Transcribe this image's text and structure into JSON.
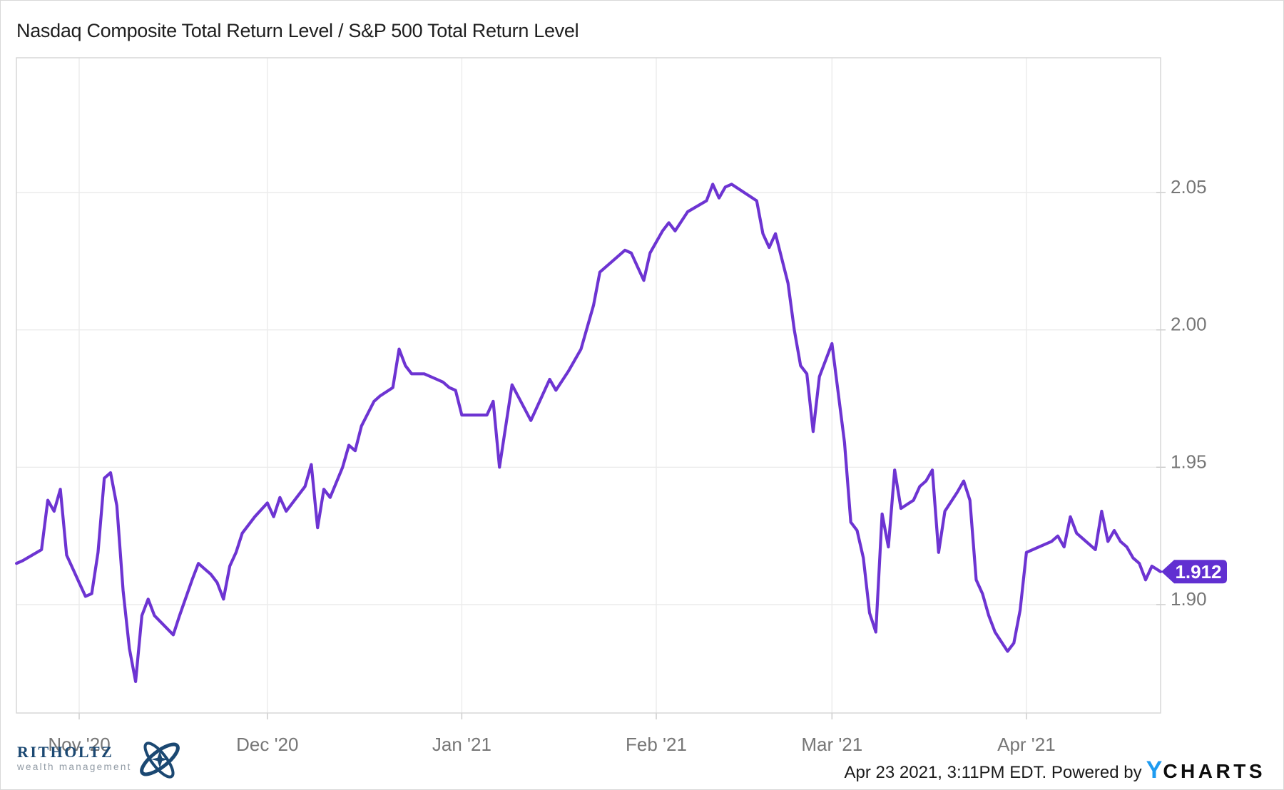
{
  "title": "Nasdaq Composite Total Return Level / S&P 500 Total Return Level",
  "footer": {
    "logo": {
      "name": "RITHOLTZ",
      "subtitle": "wealth management",
      "emblem_icon": "gyroscope-icon"
    },
    "attribution": "Apr 23 2021, 3:11PM EDT. Powered by",
    "ycharts_y": "Y",
    "ycharts_rest": "CHARTS"
  },
  "colors": {
    "line": "#6d34d2",
    "badge": "#6130d1",
    "badge_text": "#ffffff",
    "grid": "#ebebeb",
    "plot_border": "#d4d4d4",
    "tick": "#c9c9c9",
    "axis_text": "#767676",
    "title_text": "#1f1f1f",
    "ycharts_blue": "#1e9bf0",
    "logo_navy": "#1b4872"
  },
  "chart_data": {
    "type": "line",
    "title": "Nasdaq Composite Total Return Level / S&P 500 Total Return Level",
    "grid": true,
    "legend": false,
    "y_axis_side": "right",
    "x_range": [
      "2020-10-22",
      "2021-04-23"
    ],
    "y_range": [
      1.861,
      2.099
    ],
    "x_ticks": [
      {
        "date": "2020-11-01",
        "label": "Nov '20"
      },
      {
        "date": "2020-12-01",
        "label": "Dec '20"
      },
      {
        "date": "2021-01-01",
        "label": "Jan '21"
      },
      {
        "date": "2021-02-01",
        "label": "Feb '21"
      },
      {
        "date": "2021-03-01",
        "label": "Mar '21"
      },
      {
        "date": "2021-04-01",
        "label": "Apr '21"
      }
    ],
    "y_ticks": [
      {
        "value": 2.05,
        "label": "2.05"
      },
      {
        "value": 2.0,
        "label": "2.00"
      },
      {
        "value": 1.95,
        "label": "1.95"
      },
      {
        "value": 1.9,
        "label": "1.90"
      }
    ],
    "last_value": 1.912,
    "last_value_label": "1.912",
    "series": [
      {
        "name": "Nasdaq Composite Total Return Level / S&P 500 Total Return Level",
        "color": "#6d34d2",
        "points": [
          [
            "2020-10-22",
            1.915
          ],
          [
            "2020-10-23",
            1.916
          ],
          [
            "2020-10-26",
            1.92
          ],
          [
            "2020-10-27",
            1.938
          ],
          [
            "2020-10-28",
            1.934
          ],
          [
            "2020-10-29",
            1.942
          ],
          [
            "2020-10-30",
            1.918
          ],
          [
            "2020-10-31",
            1.913
          ],
          [
            "2020-11-01",
            1.908
          ],
          [
            "2020-11-02",
            1.903
          ],
          [
            "2020-11-03",
            1.904
          ],
          [
            "2020-11-04",
            1.919
          ],
          [
            "2020-11-05",
            1.946
          ],
          [
            "2020-11-06",
            1.948
          ],
          [
            "2020-11-07",
            1.936
          ],
          [
            "2020-11-08",
            1.905
          ],
          [
            "2020-11-09",
            1.884
          ],
          [
            "2020-11-10",
            1.872
          ],
          [
            "2020-11-11",
            1.896
          ],
          [
            "2020-11-12",
            1.902
          ],
          [
            "2020-11-13",
            1.896
          ],
          [
            "2020-11-16",
            1.889
          ],
          [
            "2020-11-17",
            1.896
          ],
          [
            "2020-11-19",
            1.909
          ],
          [
            "2020-11-20",
            1.915
          ],
          [
            "2020-11-21",
            1.913
          ],
          [
            "2020-11-22",
            1.911
          ],
          [
            "2020-11-23",
            1.908
          ],
          [
            "2020-11-24",
            1.902
          ],
          [
            "2020-11-25",
            1.914
          ],
          [
            "2020-11-26",
            1.919
          ],
          [
            "2020-11-27",
            1.926
          ],
          [
            "2020-11-29",
            1.932
          ],
          [
            "2020-12-01",
            1.937
          ],
          [
            "2020-12-02",
            1.932
          ],
          [
            "2020-12-03",
            1.939
          ],
          [
            "2020-12-04",
            1.934
          ],
          [
            "2020-12-07",
            1.943
          ],
          [
            "2020-12-08",
            1.951
          ],
          [
            "2020-12-09",
            1.928
          ],
          [
            "2020-12-10",
            1.942
          ],
          [
            "2020-12-11",
            1.939
          ],
          [
            "2020-12-13",
            1.95
          ],
          [
            "2020-12-14",
            1.958
          ],
          [
            "2020-12-15",
            1.956
          ],
          [
            "2020-12-16",
            1.965
          ],
          [
            "2020-12-18",
            1.974
          ],
          [
            "2020-12-19",
            1.976
          ],
          [
            "2020-12-21",
            1.979
          ],
          [
            "2020-12-22",
            1.993
          ],
          [
            "2020-12-23",
            1.987
          ],
          [
            "2020-12-24",
            1.984
          ],
          [
            "2020-12-26",
            1.984
          ],
          [
            "2020-12-28",
            1.982
          ],
          [
            "2020-12-29",
            1.981
          ],
          [
            "2020-12-30",
            1.979
          ],
          [
            "2020-12-31",
            1.978
          ],
          [
            "2021-01-01",
            1.969
          ],
          [
            "2021-01-04",
            1.969
          ],
          [
            "2021-01-05",
            1.969
          ],
          [
            "2021-01-06",
            1.974
          ],
          [
            "2021-01-07",
            1.95
          ],
          [
            "2021-01-09",
            1.98
          ],
          [
            "2021-01-12",
            1.967
          ],
          [
            "2021-01-15",
            1.982
          ],
          [
            "2021-01-16",
            1.978
          ],
          [
            "2021-01-18",
            1.985
          ],
          [
            "2021-01-19",
            1.989
          ],
          [
            "2021-01-20",
            1.993
          ],
          [
            "2021-01-22",
            2.009
          ],
          [
            "2021-01-23",
            2.021
          ],
          [
            "2021-01-27",
            2.029
          ],
          [
            "2021-01-28",
            2.028
          ],
          [
            "2021-01-30",
            2.018
          ],
          [
            "2021-01-31",
            2.028
          ],
          [
            "2021-02-02",
            2.036
          ],
          [
            "2021-02-03",
            2.039
          ],
          [
            "2021-02-04",
            2.036
          ],
          [
            "2021-02-06",
            2.043
          ],
          [
            "2021-02-09",
            2.047
          ],
          [
            "2021-02-10",
            2.053
          ],
          [
            "2021-02-11",
            2.048
          ],
          [
            "2021-02-12",
            2.052
          ],
          [
            "2021-02-13",
            2.053
          ],
          [
            "2021-02-15",
            2.05
          ],
          [
            "2021-02-17",
            2.047
          ],
          [
            "2021-02-18",
            2.035
          ],
          [
            "2021-02-19",
            2.03
          ],
          [
            "2021-02-20",
            2.035
          ],
          [
            "2021-02-22",
            2.017
          ],
          [
            "2021-02-23",
            2.0
          ],
          [
            "2021-02-24",
            1.987
          ],
          [
            "2021-02-25",
            1.984
          ],
          [
            "2021-02-26",
            1.963
          ],
          [
            "2021-02-27",
            1.983
          ],
          [
            "2021-02-28",
            1.989
          ],
          [
            "2021-03-01",
            1.995
          ],
          [
            "2021-03-03",
            1.959
          ],
          [
            "2021-03-04",
            1.93
          ],
          [
            "2021-03-05",
            1.927
          ],
          [
            "2021-03-06",
            1.917
          ],
          [
            "2021-03-07",
            1.897
          ],
          [
            "2021-03-08",
            1.89
          ],
          [
            "2021-03-09",
            1.933
          ],
          [
            "2021-03-10",
            1.921
          ],
          [
            "2021-03-11",
            1.949
          ],
          [
            "2021-03-12",
            1.935
          ],
          [
            "2021-03-14",
            1.938
          ],
          [
            "2021-03-15",
            1.943
          ],
          [
            "2021-03-16",
            1.945
          ],
          [
            "2021-03-17",
            1.949
          ],
          [
            "2021-03-18",
            1.919
          ],
          [
            "2021-03-19",
            1.934
          ],
          [
            "2021-03-21",
            1.941
          ],
          [
            "2021-03-22",
            1.945
          ],
          [
            "2021-03-23",
            1.938
          ],
          [
            "2021-03-24",
            1.909
          ],
          [
            "2021-03-25",
            1.904
          ],
          [
            "2021-03-26",
            1.896
          ],
          [
            "2021-03-27",
            1.89
          ],
          [
            "2021-03-29",
            1.883
          ],
          [
            "2021-03-30",
            1.886
          ],
          [
            "2021-03-31",
            1.898
          ],
          [
            "2021-04-01",
            1.919
          ],
          [
            "2021-04-03",
            1.921
          ],
          [
            "2021-04-05",
            1.923
          ],
          [
            "2021-04-06",
            1.925
          ],
          [
            "2021-04-07",
            1.921
          ],
          [
            "2021-04-08",
            1.932
          ],
          [
            "2021-04-09",
            1.926
          ],
          [
            "2021-04-10",
            1.924
          ],
          [
            "2021-04-12",
            1.92
          ],
          [
            "2021-04-13",
            1.934
          ],
          [
            "2021-04-14",
            1.923
          ],
          [
            "2021-04-15",
            1.927
          ],
          [
            "2021-04-16",
            1.923
          ],
          [
            "2021-04-17",
            1.921
          ],
          [
            "2021-04-18",
            1.917
          ],
          [
            "2021-04-19",
            1.915
          ],
          [
            "2021-04-20",
            1.909
          ],
          [
            "2021-04-21",
            1.914
          ],
          [
            "2021-04-23",
            1.912
          ]
        ]
      }
    ]
  }
}
